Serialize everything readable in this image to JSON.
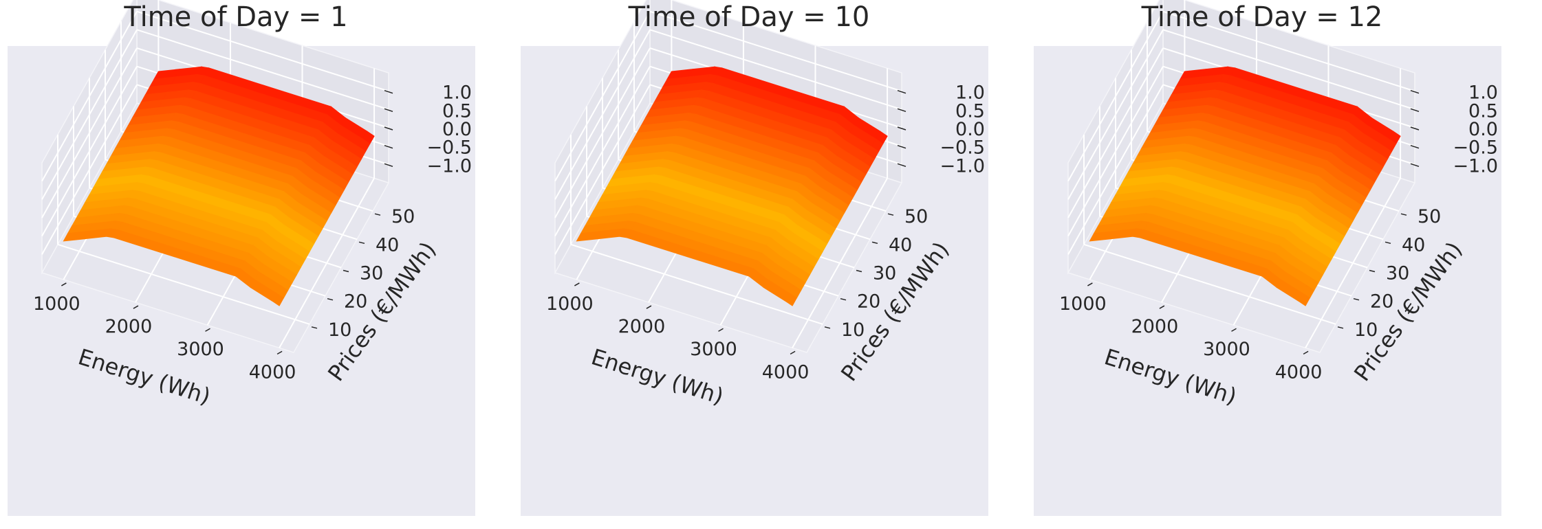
{
  "chart_data": [
    {
      "type": "surface3d",
      "title": "Time of Day = 1",
      "xlabel": "Energy (Wh)",
      "ylabel": "Prices (€/MWh)",
      "zlabel": "",
      "x_ticks": [
        1000,
        2000,
        3000,
        4000
      ],
      "y_ticks": [
        10,
        20,
        30,
        40,
        50
      ],
      "z_ticks": [
        "1.0",
        "0.5",
        "0.0",
        "−0.5",
        "−1.0"
      ],
      "xlim": [
        700,
        4200
      ],
      "ylim": [
        0,
        60
      ],
      "zlim": [
        -1.5,
        1.5
      ],
      "surface": {
        "x": [
          1000,
          1300,
          1600,
          1700,
          3400,
          3600,
          3900,
          4000
        ],
        "z": [
          -0.45,
          -0.2,
          0.05,
          0.08,
          0.08,
          -0.1,
          -0.28,
          -0.35
        ]
      },
      "colormap": [
        "#ff1e00",
        "#ff6a00",
        "#ffb300",
        "#ff8000"
      ],
      "grid": true,
      "background": "#eaeaf2"
    },
    {
      "type": "surface3d",
      "title": "Time of Day = 10",
      "xlabel": "Energy (Wh)",
      "ylabel": "Prices (€/MWh)",
      "zlabel": "",
      "x_ticks": [
        1000,
        2000,
        3000,
        4000
      ],
      "y_ticks": [
        10,
        20,
        30,
        40,
        50
      ],
      "z_ticks": [
        "1.0",
        "0.5",
        "0.0",
        "−0.5",
        "−1.0"
      ],
      "xlim": [
        700,
        4200
      ],
      "ylim": [
        0,
        60
      ],
      "zlim": [
        -1.5,
        1.5
      ],
      "surface": {
        "x": [
          1000,
          1300,
          1600,
          1700,
          3400,
          3600,
          3900,
          4000
        ],
        "z": [
          -0.45,
          -0.2,
          0.05,
          0.08,
          0.08,
          -0.1,
          -0.28,
          -0.35
        ]
      },
      "colormap": [
        "#ff1e00",
        "#ff6a00",
        "#ffb300",
        "#ff8000"
      ],
      "grid": true,
      "background": "#eaeaf2"
    },
    {
      "type": "surface3d",
      "title": "Time of Day = 12",
      "xlabel": "Energy (Wh)",
      "ylabel": "Prices (€/MWh)",
      "zlabel": "",
      "x_ticks": [
        1000,
        2000,
        3000,
        4000
      ],
      "y_ticks": [
        10,
        20,
        30,
        40,
        50
      ],
      "z_ticks": [
        "1.0",
        "0.5",
        "0.0",
        "−0.5",
        "−1.0"
      ],
      "xlim": [
        700,
        4200
      ],
      "ylim": [
        0,
        60
      ],
      "zlim": [
        -1.5,
        1.5
      ],
      "surface": {
        "x": [
          1000,
          1300,
          1600,
          1700,
          3400,
          3600,
          3900,
          4000
        ],
        "z": [
          -0.45,
          -0.2,
          0.05,
          0.08,
          0.08,
          -0.1,
          -0.28,
          -0.35
        ]
      },
      "colormap": [
        "#ff1e00",
        "#ff6a00",
        "#ffb300",
        "#ff8000"
      ],
      "grid": true,
      "background": "#eaeaf2"
    }
  ]
}
